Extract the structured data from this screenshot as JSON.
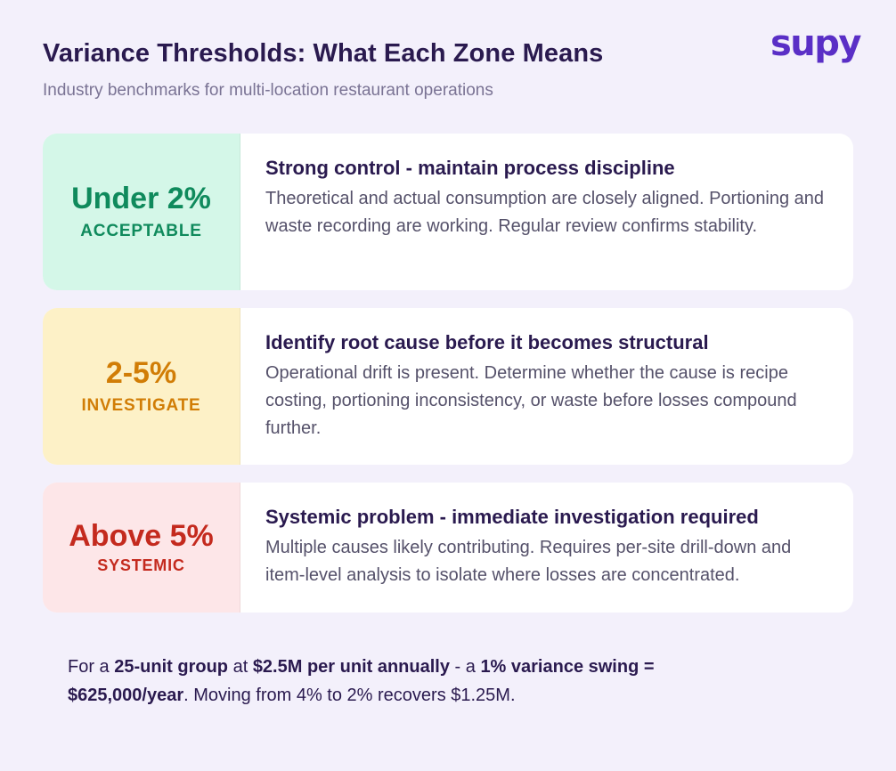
{
  "header": {
    "title": "Variance Thresholds: What Each Zone Means",
    "subtitle": "Industry benchmarks for multi-location restaurant operations"
  },
  "logo": {
    "text": "supy"
  },
  "colors": {
    "background": "#f3f0fb",
    "brand": "#5a2fc6",
    "title": "#2a1a4f"
  },
  "zones": [
    {
      "value": "Under 2%",
      "label": "ACCEPTABLE",
      "heading": "Strong control - maintain process discipline",
      "description": "Theoretical and actual consumption are closely aligned. Portioning and waste recording are working. Regular review confirms stability.",
      "bg_color": "#d4f7e8",
      "text_color": "#0f8a5c"
    },
    {
      "value": "2-5%",
      "label": "INVESTIGATE",
      "heading": "Identify root cause before it becomes structural",
      "description": "Operational drift is present. Determine whether the cause is recipe costing, portioning inconsistency, or waste before losses compound further.",
      "bg_color": "#fdf1c7",
      "text_color": "#d17d06"
    },
    {
      "value": "Above 5%",
      "label": "SYSTEMIC",
      "heading": "Systemic problem - immediate investigation required",
      "description": "Multiple causes likely contributing. Requires per-site drill-down and item-level analysis to isolate where losses are concentrated.",
      "bg_color": "#fde6e8",
      "text_color": "#c42a1e"
    }
  ],
  "footer": {
    "t1": "For a ",
    "b1": "25-unit group",
    "t2": " at ",
    "b2": "$2.5M per unit annually",
    "t3": " - a ",
    "b3": "1% variance swing = $625,000/year",
    "t4": ". Moving from 4% to 2% recovers $1.25M."
  }
}
